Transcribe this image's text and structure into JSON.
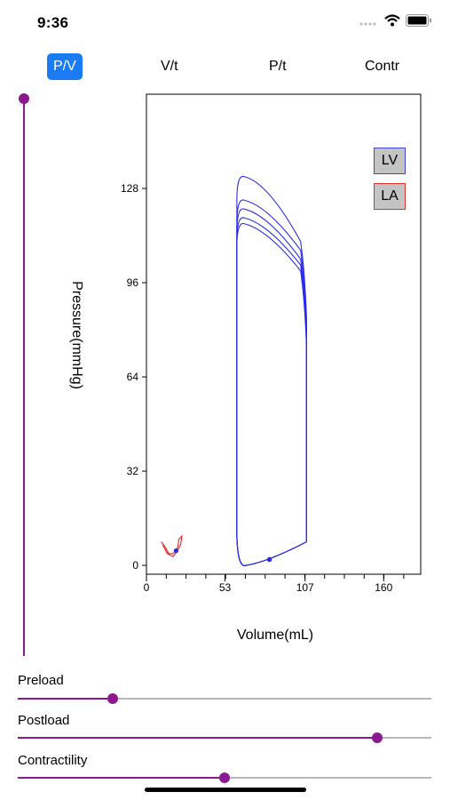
{
  "status_bar": {
    "time": "9:36",
    "icons": [
      "cellular-dots-icon",
      "wifi-icon",
      "battery-icon"
    ]
  },
  "tabs": [
    {
      "label": "P/V",
      "active": true
    },
    {
      "label": "V/t",
      "active": false
    },
    {
      "label": "P/t",
      "active": false
    },
    {
      "label": "Contr",
      "active": false
    }
  ],
  "legend": {
    "lv": "LV",
    "la": "LA",
    "lv_color": "#3b46d6",
    "la_color": "#e03030"
  },
  "colors": {
    "accent": "#8b1a8f",
    "tab_active": "#1a7bf2",
    "lv_curve": "#2b2bea",
    "la_curve": "#e03030"
  },
  "vertical_slider": {
    "value": 1.0
  },
  "sliders": [
    {
      "label": "Preload",
      "value": 0.23
    },
    {
      "label": "Postload",
      "value": 0.87
    },
    {
      "label": "Contractility",
      "value": 0.5
    }
  ],
  "chart_data": {
    "type": "line",
    "xlabel": "Volume(mL)",
    "ylabel": "Pressure(mmHg)",
    "x_ticks": [
      "0",
      "53",
      "107",
      "160"
    ],
    "y_ticks": [
      "0",
      "32",
      "64",
      "96",
      "128"
    ],
    "xlim": [
      0,
      185
    ],
    "ylim": [
      -3,
      160
    ],
    "series": [
      {
        "name": "LV",
        "loops": [
          {
            "edv": 108,
            "esv": 61,
            "peak": 132,
            "open": 92
          },
          {
            "edv": 108,
            "esv": 61,
            "peak": 124,
            "open": 89
          },
          {
            "edv": 108,
            "esv": 61,
            "peak": 121,
            "open": 86
          },
          {
            "edv": 108,
            "esv": 61,
            "peak": 118,
            "open": 84
          },
          {
            "edv": 108,
            "esv": 61,
            "peak": 116,
            "open": 82
          }
        ],
        "marker": [
          83,
          2
        ]
      },
      {
        "name": "LA",
        "points": [
          [
            10,
            8
          ],
          [
            13,
            6
          ],
          [
            15,
            4
          ],
          [
            18,
            4
          ],
          [
            21,
            6
          ],
          [
            22,
            9
          ],
          [
            24,
            10
          ],
          [
            23,
            7
          ],
          [
            21,
            5
          ],
          [
            18,
            3
          ],
          [
            14,
            4
          ],
          [
            11,
            7
          ]
        ],
        "marker": [
          20,
          5
        ]
      }
    ]
  }
}
